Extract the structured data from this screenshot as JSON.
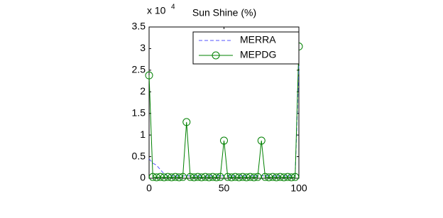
{
  "chart_data": {
    "type": "line",
    "title": "Sun Shine (%)",
    "axis_multiplier": "x 10",
    "axis_multiplier_exponent": "4",
    "x": [
      0,
      2.5,
      5,
      7.5,
      10,
      12.5,
      15,
      17.5,
      20,
      22.5,
      25,
      27.5,
      30,
      32.5,
      35,
      37.5,
      40,
      42.5,
      45,
      47.5,
      50,
      52.5,
      55,
      57.5,
      60,
      62.5,
      65,
      67.5,
      70,
      72.5,
      75,
      77.5,
      80,
      82.5,
      85,
      87.5,
      90,
      92.5,
      95,
      97.5,
      100
    ],
    "series": [
      {
        "name": "MERRA",
        "color": "#5555ff",
        "line_style": "dashed",
        "marker": "none",
        "values": [
          0.45,
          0.35,
          0.3,
          0.2,
          0.1,
          0.05,
          0.06,
          0.05,
          0.06,
          0.05,
          0.06,
          0.05,
          0.06,
          0.05,
          0.06,
          0.05,
          0.06,
          0.05,
          0.06,
          0.05,
          0.06,
          0.05,
          0.06,
          0.05,
          0.06,
          0.05,
          0.06,
          0.05,
          0.06,
          0.05,
          0.06,
          0.05,
          0.06,
          0.05,
          0.06,
          0.05,
          0.06,
          0.05,
          0.06,
          0.05,
          2.6
        ]
      },
      {
        "name": "MEPDG",
        "color": "#008000",
        "line_style": "solid",
        "marker": "circle",
        "values": [
          2.38,
          0.03,
          0.02,
          0.03,
          0.02,
          0.03,
          0.02,
          0.03,
          0.02,
          0.03,
          1.3,
          0.03,
          0.02,
          0.03,
          0.02,
          0.03,
          0.02,
          0.03,
          0.02,
          0.03,
          0.87,
          0.03,
          0.02,
          0.03,
          0.02,
          0.03,
          0.02,
          0.03,
          0.02,
          0.03,
          0.87,
          0.03,
          0.02,
          0.03,
          0.02,
          0.03,
          0.02,
          0.03,
          0.02,
          0.03,
          3.05
        ]
      }
    ],
    "xlim": [
      0,
      100
    ],
    "xticks": [
      0,
      50,
      100
    ],
    "ylim": [
      0,
      3.5
    ],
    "yticks": [
      0,
      0.5,
      1,
      1.5,
      2,
      2.5,
      3,
      3.5
    ],
    "legend": "northeast",
    "grid": false
  }
}
